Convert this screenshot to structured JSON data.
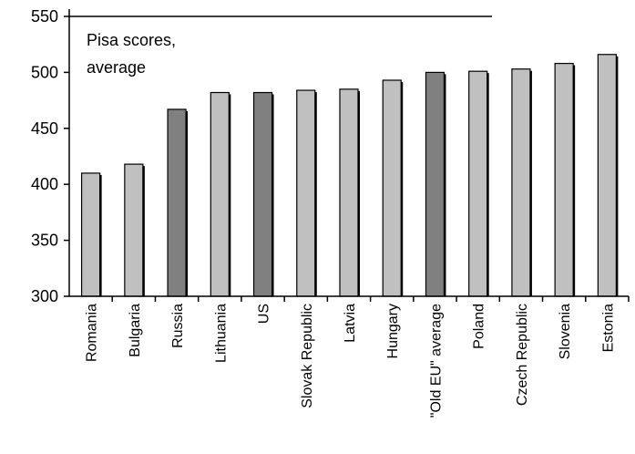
{
  "chart_data": {
    "type": "bar",
    "title": "",
    "annotation": [
      "Pisa scores,",
      "average"
    ],
    "xlabel": "",
    "ylabel": "",
    "ylim": [
      300,
      550
    ],
    "yticks": [
      300,
      350,
      400,
      450,
      500,
      550
    ],
    "grid": false,
    "categories": [
      "Romania",
      "Bulgaria",
      "Russia",
      "Lithuania",
      "US",
      "Slovak Republic",
      "Latvia",
      "Hungary",
      "\"Old EU\" average",
      "Poland",
      "Czech Republic",
      "Slovenia",
      "Estonia"
    ],
    "values": [
      410,
      418,
      467,
      482,
      482,
      484,
      485,
      493,
      500,
      501,
      503,
      508,
      516
    ],
    "highlighted": [
      false,
      false,
      true,
      false,
      true,
      false,
      false,
      false,
      true,
      false,
      false,
      false,
      false
    ],
    "colors": {
      "bar": "#c0c0c0",
      "highlight": "#808080",
      "stroke": "#000000"
    }
  }
}
